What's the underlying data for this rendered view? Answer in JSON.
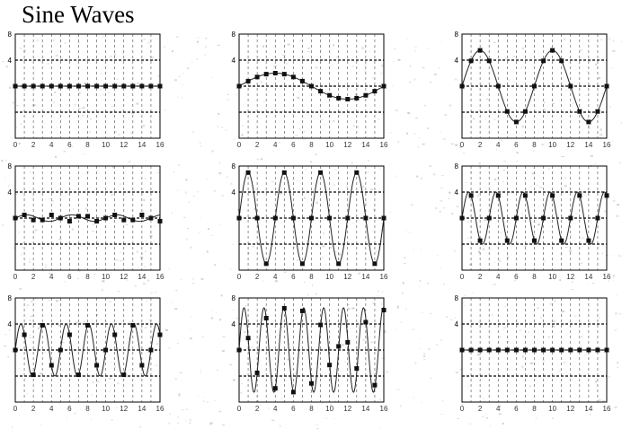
{
  "page": {
    "title": "Sine Waves"
  },
  "style": {
    "line_color": "#222222",
    "marker_color": "#111111",
    "grid_color": "#000000",
    "noise_color": "#bdbdbd"
  },
  "chart_data": [
    {
      "type": "line",
      "ylim": [
        -8,
        8
      ],
      "yticks": [
        8,
        4
      ],
      "xlim": [
        0,
        16
      ],
      "xticks": [
        "0",
        "2",
        "4",
        "6",
        "8",
        "10",
        "12",
        "14",
        "16"
      ],
      "grid": true,
      "series": [
        {
          "amplitude": 0,
          "period": 16,
          "x": [
            0,
            1,
            2,
            3,
            4,
            5,
            6,
            7,
            8,
            9,
            10,
            11,
            12,
            13,
            14,
            15,
            16
          ],
          "y": [
            0,
            0,
            0,
            0,
            0,
            0,
            0,
            0,
            0,
            0,
            0,
            0,
            0,
            0,
            0,
            0,
            0
          ]
        }
      ]
    },
    {
      "type": "line",
      "ylim": [
        -8,
        8
      ],
      "yticks": [
        8,
        4
      ],
      "xlim": [
        0,
        16
      ],
      "xticks": [
        "0",
        "2",
        "4",
        "6",
        "8",
        "10",
        "12",
        "14",
        "16"
      ],
      "grid": true,
      "series": [
        {
          "amplitude": 2,
          "period": 16,
          "x": [
            0,
            1,
            2,
            3,
            4,
            5,
            6,
            7,
            8,
            9,
            10,
            11,
            12,
            13,
            14,
            15,
            16
          ],
          "y": [
            0,
            0.77,
            1.41,
            1.85,
            2,
            1.85,
            1.41,
            0.77,
            0,
            -0.77,
            -1.41,
            -1.85,
            -2,
            -1.85,
            -1.41,
            -0.77,
            0
          ]
        }
      ]
    },
    {
      "type": "line",
      "ylim": [
        -8,
        8
      ],
      "yticks": [
        8,
        4
      ],
      "xlim": [
        0,
        16
      ],
      "xticks": [
        "0",
        "2",
        "4",
        "6",
        "8",
        "10",
        "12",
        "14",
        "16"
      ],
      "grid": true,
      "series": [
        {
          "amplitude": 5.5,
          "period": 8,
          "x": [
            0,
            1,
            2,
            3,
            4,
            5,
            6,
            7,
            8,
            9,
            10,
            11,
            12,
            13,
            14,
            15,
            16
          ],
          "y": [
            0,
            3.89,
            5.5,
            3.89,
            0,
            -3.89,
            -5.5,
            -3.89,
            0,
            3.89,
            5.5,
            3.89,
            0,
            -3.89,
            -5.5,
            -3.89,
            0
          ]
        }
      ]
    },
    {
      "type": "line",
      "ylim": [
        -8,
        8
      ],
      "yticks": [
        8,
        4
      ],
      "xlim": [
        0,
        16
      ],
      "xticks": [
        "0",
        "2",
        "4",
        "6",
        "8",
        "10",
        "12",
        "14",
        "16"
      ],
      "grid": true,
      "series": [
        {
          "amplitude": 0.5,
          "period": 5,
          "x": [
            0,
            1,
            2,
            3,
            4,
            5,
            6,
            7,
            8,
            9,
            10,
            11,
            12,
            13,
            14,
            15,
            16
          ],
          "y": [
            0,
            0.48,
            -0.29,
            -0.29,
            0.48,
            0,
            -0.48,
            0.29,
            0.29,
            -0.48,
            0,
            0.48,
            -0.29,
            -0.29,
            0.48,
            0,
            -0.48
          ]
        }
      ]
    },
    {
      "type": "line",
      "ylim": [
        -8,
        8
      ],
      "yticks": [
        8,
        4
      ],
      "xlim": [
        0,
        16
      ],
      "xticks": [
        "0",
        "2",
        "4",
        "6",
        "8",
        "10",
        "12",
        "14",
        "16"
      ],
      "grid": true,
      "series": [
        {
          "amplitude": 7,
          "period": 4,
          "x": [
            0,
            1,
            2,
            3,
            4,
            5,
            6,
            7,
            8,
            9,
            10,
            11,
            12,
            13,
            14,
            15,
            16
          ],
          "y": [
            0,
            7,
            0,
            -7,
            0,
            7,
            0,
            -7,
            0,
            7,
            0,
            -7,
            0,
            7,
            0,
            -7,
            0
          ]
        }
      ]
    },
    {
      "type": "line",
      "ylim": [
        -8,
        8
      ],
      "yticks": [
        8,
        4
      ],
      "xlim": [
        0,
        16
      ],
      "xticks": [
        "0",
        "2",
        "4",
        "6",
        "8",
        "10",
        "12",
        "14",
        "16"
      ],
      "grid": true,
      "series": [
        {
          "amplitude": 4,
          "period": 3,
          "x": [
            0,
            1,
            2,
            3,
            4,
            5,
            6,
            7,
            8,
            9,
            10,
            11,
            12,
            13,
            14,
            15,
            16
          ],
          "y": [
            0,
            3.46,
            -3.46,
            0,
            3.46,
            -3.46,
            0,
            3.46,
            -3.46,
            0,
            3.46,
            -3.46,
            0,
            3.46,
            -3.46,
            0,
            3.46
          ]
        }
      ]
    },
    {
      "type": "line",
      "ylim": [
        -8,
        8
      ],
      "yticks": [
        8,
        4
      ],
      "xlim": [
        0,
        16
      ],
      "xticks": [
        "0",
        "2",
        "4",
        "6",
        "8",
        "10",
        "12",
        "14",
        "16"
      ],
      "grid": true,
      "series": [
        {
          "amplitude": 4,
          "period": 2.5,
          "x": [
            0,
            1,
            2,
            3,
            4,
            5,
            6,
            7,
            8,
            9,
            10,
            11,
            12,
            13,
            14,
            15,
            16
          ],
          "y": [
            0,
            2.35,
            -3.8,
            3.8,
            -2.35,
            0,
            2.35,
            -3.8,
            3.8,
            -2.35,
            0,
            2.35,
            -3.8,
            3.8,
            -2.35,
            0,
            2.35
          ]
        }
      ]
    },
    {
      "type": "line",
      "ylim": [
        -8,
        8
      ],
      "yticks": [
        8,
        4
      ],
      "xlim": [
        0,
        16
      ],
      "xticks": [
        "0",
        "2",
        "4",
        "6",
        "8",
        "10",
        "12",
        "14",
        "16"
      ],
      "grid": true,
      "series": [
        {
          "amplitude": 6.5,
          "period": 2.2,
          "x": [
            0,
            1,
            2,
            3,
            4,
            5,
            6,
            7,
            8,
            9,
            10,
            11,
            12,
            13,
            14,
            15,
            16
          ],
          "y": [
            0,
            1.83,
            -3.51,
            4.89,
            -5.89,
            6.42,
            -6.47,
            6.02,
            -5.13,
            3.86,
            -2.3,
            0.57,
            1.18,
            -2.83,
            4.28,
            -5.4,
            6.14
          ]
        }
      ]
    },
    {
      "type": "line",
      "ylim": [
        -8,
        8
      ],
      "yticks": [
        8,
        4
      ],
      "xlim": [
        0,
        16
      ],
      "xticks": [
        "0",
        "2",
        "4",
        "6",
        "8",
        "10",
        "12",
        "14",
        "16"
      ],
      "grid": true,
      "series": [
        {
          "amplitude": 0,
          "period": 16,
          "x": [
            0,
            1,
            2,
            3,
            4,
            5,
            6,
            7,
            8,
            9,
            10,
            11,
            12,
            13,
            14,
            15,
            16
          ],
          "y": [
            0,
            0,
            0,
            0,
            0,
            0,
            0,
            0,
            0,
            0,
            0,
            0,
            0,
            0,
            0,
            0,
            0
          ]
        }
      ]
    }
  ]
}
